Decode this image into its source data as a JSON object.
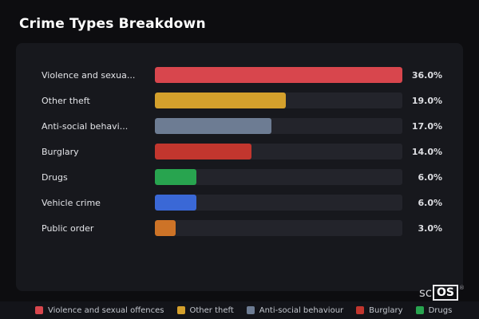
{
  "title": "Crime Types Breakdown",
  "chart_data": {
    "type": "bar",
    "orientation": "horizontal",
    "title": "Crime Types Breakdown",
    "categories": [
      "Violence and sexual offences",
      "Other theft",
      "Anti-social behaviour",
      "Burglary",
      "Drugs",
      "Vehicle crime",
      "Public order"
    ],
    "display_labels": [
      "Violence and sexua...",
      "Other theft",
      "Anti-social behavi...",
      "Burglary",
      "Drugs",
      "Vehicle crime",
      "Public order"
    ],
    "values": [
      36.0,
      19.0,
      17.0,
      14.0,
      6.0,
      6.0,
      3.0
    ],
    "value_labels": [
      "36.0%",
      "19.0%",
      "17.0%",
      "14.0%",
      "6.0%",
      "6.0%",
      "3.0%"
    ],
    "colors": [
      "#d8464d",
      "#d4a02c",
      "#6d7c93",
      "#c2362e",
      "#28a44f",
      "#3a68d6",
      "#cd7327"
    ],
    "xlim": [
      0,
      36
    ],
    "grid": false,
    "legend_position": "bottom"
  },
  "legend": {
    "items": [
      {
        "label": "Violence and sexual offences",
        "color": "#d8464d"
      },
      {
        "label": "Other theft",
        "color": "#d4a02c"
      },
      {
        "label": "Anti-social behaviour",
        "color": "#6d7c93"
      },
      {
        "label": "Burglary",
        "color": "#c2362e"
      },
      {
        "label": "Drugs",
        "color": "#28a44f"
      }
    ]
  },
  "brand": {
    "prefix": "sc",
    "boxed": "OS",
    "reg": "®"
  }
}
